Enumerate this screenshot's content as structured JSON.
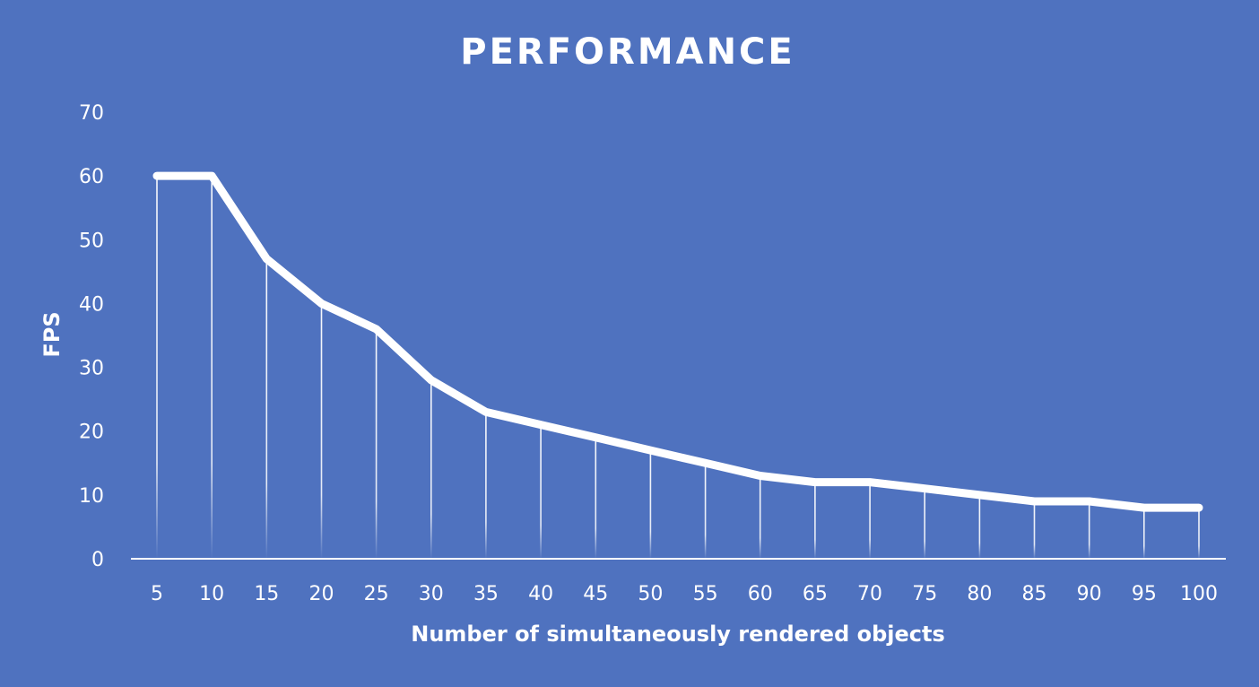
{
  "chart_data": {
    "type": "line",
    "title": "PERFORMANCE",
    "xlabel": "Number of simultaneously rendered objects",
    "ylabel": "FPS",
    "categories": [
      "5",
      "10",
      "15",
      "20",
      "25",
      "30",
      "35",
      "40",
      "45",
      "50",
      "55",
      "60",
      "65",
      "70",
      "75",
      "80",
      "85",
      "90",
      "95",
      "100"
    ],
    "series": [
      {
        "values": [
          60,
          60,
          47,
          40,
          36,
          28,
          23,
          21,
          19,
          17,
          15,
          13,
          12,
          12,
          11,
          10,
          9,
          9,
          8,
          8
        ]
      }
    ],
    "ylim": [
      0,
      70
    ],
    "yticks": [
      "0",
      "10",
      "20",
      "30",
      "40",
      "50",
      "60",
      "70"
    ],
    "grid": false,
    "drop_lines": true,
    "legend": "none",
    "colors": {
      "background": "#4f72bf",
      "line": "#ffffff",
      "text": "#ffffff"
    }
  }
}
